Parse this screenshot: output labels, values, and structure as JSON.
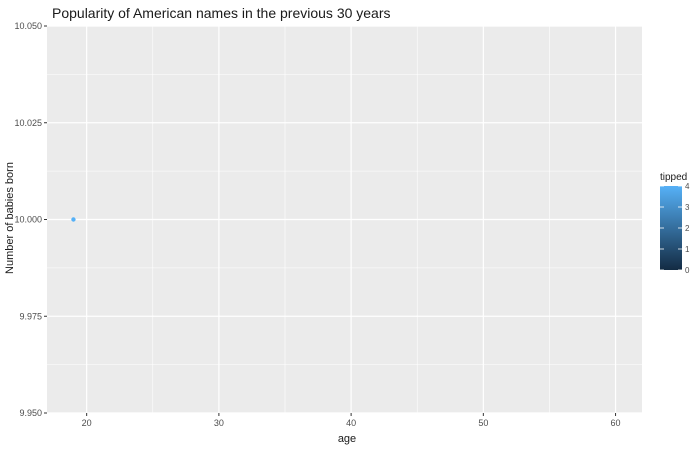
{
  "chart_data": {
    "type": "scatter",
    "title": "Popularity of American names in the previous 30 years",
    "xlabel": "age",
    "ylabel": "Number of babies born",
    "xlim": [
      17,
      62
    ],
    "ylim": [
      9.95,
      10.05
    ],
    "x_ticks": [
      20,
      30,
      40,
      50,
      60
    ],
    "x_tick_labels": [
      "20",
      "30",
      "40",
      "50",
      "60"
    ],
    "y_ticks": [
      9.95,
      9.975,
      10.0,
      10.025,
      10.05
    ],
    "y_tick_labels": [
      "9.950",
      "9.975",
      "10.000",
      "10.025",
      "10.050"
    ],
    "grid": true,
    "points": [
      {
        "x": 19,
        "y": 10.0,
        "color_value": 4
      }
    ],
    "legend": {
      "title": "tipped",
      "type": "colorbar",
      "placement": "right",
      "range": [
        0,
        4
      ],
      "ticks": [
        0,
        1,
        2,
        3,
        4
      ],
      "tick_labels": [
        "0",
        "1",
        "2",
        "3",
        "4"
      ],
      "color_low": "#132B43",
      "color_high": "#56B1F7"
    },
    "colors": {
      "panel_background": "#EBEBEB",
      "grid": "#FFFFFF",
      "point": "#56B1F7"
    }
  }
}
